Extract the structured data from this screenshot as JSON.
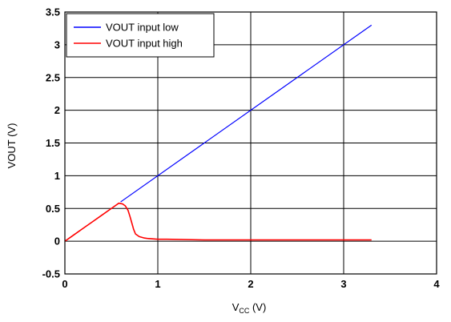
{
  "chart_data": {
    "type": "line",
    "title": "",
    "xlabel": "V",
    "xlabel_sub": "CC",
    "xlabel_suffix": " (V)",
    "ylabel": "VOUT (V)",
    "xlim": [
      0,
      4
    ],
    "ylim": [
      -0.5,
      3.5
    ],
    "xticks": [
      0,
      1,
      2,
      3,
      4
    ],
    "yticks": [
      -0.5,
      0,
      0.5,
      1,
      1.5,
      2,
      2.5,
      3,
      3.5
    ],
    "grid": true,
    "legend_position": "top-left",
    "series": [
      {
        "name": "VOUT input low",
        "color": "#0000ff",
        "x": [
          0.6,
          3.3
        ],
        "y": [
          0.6,
          3.3
        ]
      },
      {
        "name": "VOUT input high",
        "color": "#ff0000",
        "x": [
          0,
          0.05,
          0.1,
          0.2,
          0.3,
          0.4,
          0.5,
          0.58,
          0.62,
          0.65,
          0.68,
          0.7,
          0.72,
          0.74,
          0.76,
          0.8,
          0.85,
          0.9,
          1.0,
          1.1,
          1.5,
          2.0,
          2.5,
          3.0,
          3.3
        ],
        "y": [
          0,
          0.05,
          0.1,
          0.2,
          0.3,
          0.4,
          0.5,
          0.58,
          0.57,
          0.54,
          0.47,
          0.38,
          0.28,
          0.18,
          0.11,
          0.07,
          0.05,
          0.04,
          0.03,
          0.03,
          0.02,
          0.02,
          0.02,
          0.02,
          0.02
        ]
      }
    ]
  }
}
